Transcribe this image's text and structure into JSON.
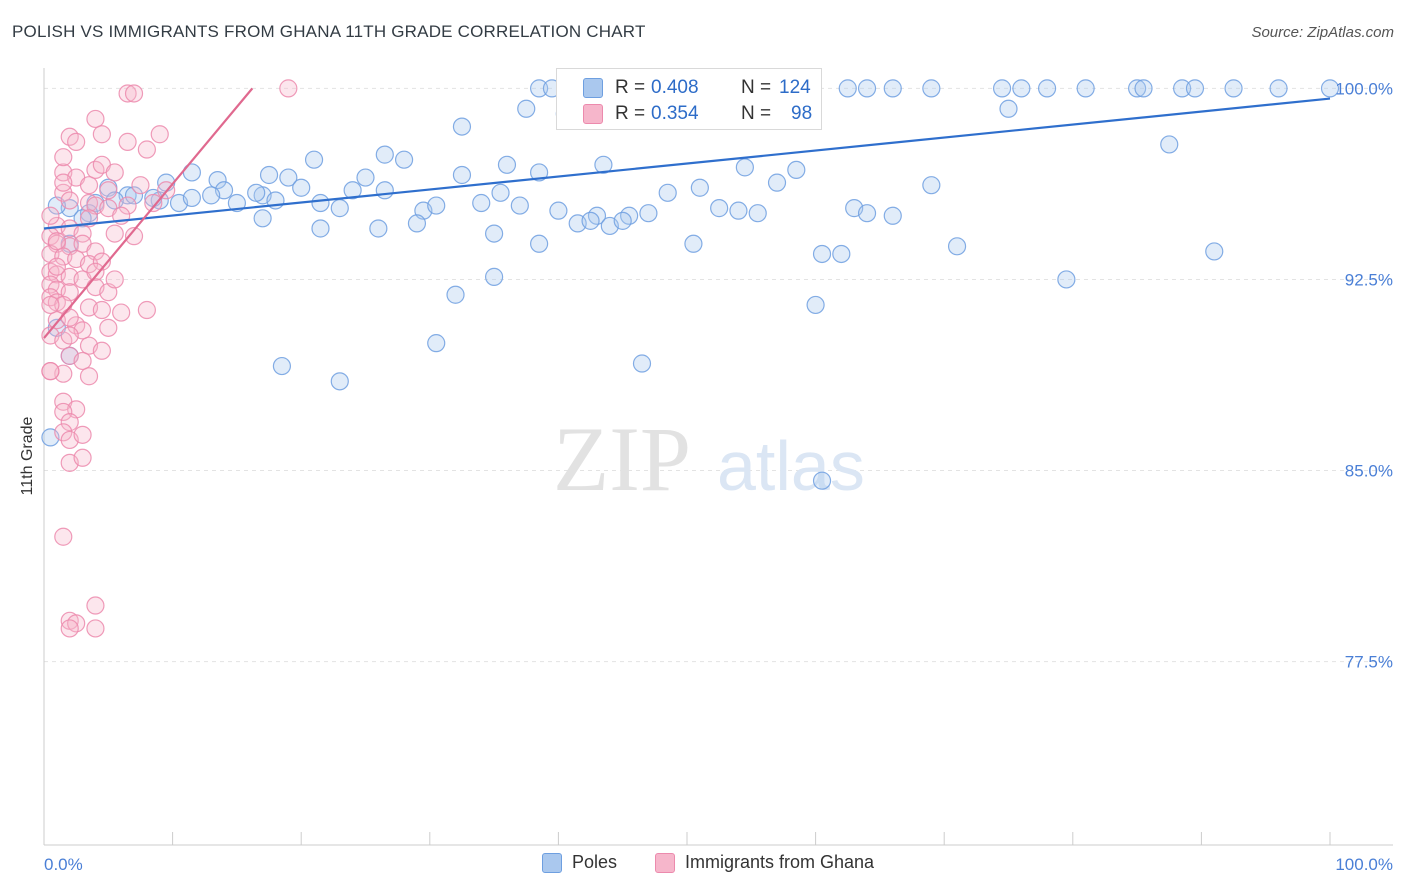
{
  "header": {
    "title": "POLISH VS IMMIGRANTS FROM GHANA 11TH GRADE CORRELATION CHART",
    "source": "Source: ZipAtlas.com"
  },
  "watermark": {
    "left": "ZIP",
    "right": "atlas"
  },
  "colors": {
    "poles_fill": "#aac8ee",
    "poles_stroke": "#6e9fe0",
    "poles_line": "#2f6fcd",
    "ghana_fill": "#f6b6cb",
    "ghana_stroke": "#ec8aad",
    "ghana_line": "#e0698f",
    "grid": "#e3e3e3",
    "tick_text": "#4a7fd6"
  },
  "legend": {
    "poles": {
      "r_label": "R =",
      "r_value": "0.408",
      "n_label": "N =",
      "n_value": "124"
    },
    "ghana": {
      "r_label": "R =",
      "r_value": "0.354",
      "n_label": "N =",
      "n_value": "98"
    }
  },
  "bottom_legend": {
    "poles": "Poles",
    "ghana": "Immigrants from Ghana"
  },
  "chart_data": {
    "type": "scatter",
    "title": "POLISH VS IMMIGRANTS FROM GHANA 11TH GRADE CORRELATION CHART",
    "xlabel": "",
    "ylabel": "11th Grade",
    "xlim": [
      0,
      100
    ],
    "ylim": [
      70.3,
      100.8
    ],
    "x_tick_labels": [
      "0.0%",
      "100.0%"
    ],
    "y_ticks": [
      100.0,
      92.5,
      85.0,
      77.5
    ],
    "y_tick_labels": [
      "100.0%",
      "92.5%",
      "85.0%",
      "77.5%"
    ],
    "grid": true,
    "legend_position": "top-center",
    "series": [
      {
        "name": "Poles",
        "r": 0.408,
        "n": 124,
        "trend": {
          "x": [
            0,
            100
          ],
          "y": [
            94.5,
            99.6
          ]
        },
        "points": [
          [
            38.5,
            100
          ],
          [
            39.5,
            100
          ],
          [
            41,
            100
          ],
          [
            43,
            100
          ],
          [
            47.5,
            100
          ],
          [
            48.5,
            100
          ],
          [
            51.5,
            100
          ],
          [
            54,
            100
          ],
          [
            57.5,
            100
          ],
          [
            62.5,
            100
          ],
          [
            64,
            100
          ],
          [
            66,
            100
          ],
          [
            69,
            100
          ],
          [
            74.5,
            100
          ],
          [
            76,
            100
          ],
          [
            78,
            100
          ],
          [
            81,
            100
          ],
          [
            85,
            100
          ],
          [
            85.5,
            100
          ],
          [
            88.5,
            100
          ],
          [
            89.5,
            100
          ],
          [
            92.5,
            100
          ],
          [
            96,
            100
          ],
          [
            100,
            100
          ],
          [
            37.5,
            99.2
          ],
          [
            47,
            99.3
          ],
          [
            56.5,
            99.3
          ],
          [
            75,
            99.2
          ],
          [
            40.5,
            99
          ],
          [
            50.5,
            99
          ],
          [
            32.5,
            98.5
          ],
          [
            87.5,
            97.8
          ],
          [
            26.5,
            97.4
          ],
          [
            21,
            97.2
          ],
          [
            28,
            97.2
          ],
          [
            36,
            97
          ],
          [
            43.5,
            97
          ],
          [
            54.5,
            96.9
          ],
          [
            58.5,
            96.8
          ],
          [
            38.5,
            96.7
          ],
          [
            11.5,
            96.7
          ],
          [
            17.5,
            96.6
          ],
          [
            19,
            96.5
          ],
          [
            25,
            96.5
          ],
          [
            32.5,
            96.6
          ],
          [
            13.5,
            96.4
          ],
          [
            5,
            96.1
          ],
          [
            9.5,
            96.3
          ],
          [
            14,
            96
          ],
          [
            20,
            96.1
          ],
          [
            24,
            96
          ],
          [
            26.5,
            96
          ],
          [
            48.5,
            95.9
          ],
          [
            51,
            96.1
          ],
          [
            35.5,
            95.9
          ],
          [
            57,
            96.3
          ],
          [
            69,
            96.2
          ],
          [
            6.5,
            95.8
          ],
          [
            9,
            95.6
          ],
          [
            7,
            95.8
          ],
          [
            8.5,
            95.7
          ],
          [
            10.5,
            95.5
          ],
          [
            11.5,
            95.7
          ],
          [
            13,
            95.8
          ],
          [
            15,
            95.5
          ],
          [
            17,
            95.8
          ],
          [
            16.5,
            95.9
          ],
          [
            18,
            95.6
          ],
          [
            21.5,
            95.5
          ],
          [
            23,
            95.3
          ],
          [
            5.5,
            95.6
          ],
          [
            4,
            95.5
          ],
          [
            2,
            95.3
          ],
          [
            1,
            95.4
          ],
          [
            3.5,
            95.1
          ],
          [
            29.5,
            95.2
          ],
          [
            30.5,
            95.4
          ],
          [
            34,
            95.5
          ],
          [
            37,
            95.4
          ],
          [
            40,
            95.2
          ],
          [
            43,
            95
          ],
          [
            45.5,
            95
          ],
          [
            47,
            95.1
          ],
          [
            52.5,
            95.3
          ],
          [
            54,
            95.2
          ],
          [
            63,
            95.3
          ],
          [
            64,
            95.1
          ],
          [
            66,
            95
          ],
          [
            55.5,
            95.1
          ],
          [
            41.5,
            94.7
          ],
          [
            42.5,
            94.8
          ],
          [
            44,
            94.6
          ],
          [
            45,
            94.8
          ],
          [
            17,
            94.9
          ],
          [
            21.5,
            94.5
          ],
          [
            26,
            94.5
          ],
          [
            29,
            94.7
          ],
          [
            35,
            94.3
          ],
          [
            38.5,
            93.9
          ],
          [
            50.5,
            93.9
          ],
          [
            60.5,
            93.5
          ],
          [
            62,
            93.5
          ],
          [
            71,
            93.8
          ],
          [
            91,
            93.6
          ],
          [
            3,
            94.9
          ],
          [
            2,
            93.9
          ],
          [
            79.5,
            92.5
          ],
          [
            35,
            92.6
          ],
          [
            60,
            91.5
          ],
          [
            32,
            91.9
          ],
          [
            30.5,
            90
          ],
          [
            1,
            90.6
          ],
          [
            2,
            89.5
          ],
          [
            46.5,
            89.2
          ],
          [
            18.5,
            89.1
          ],
          [
            23,
            88.5
          ],
          [
            60.5,
            84.6
          ],
          [
            0.5,
            86.3
          ]
        ]
      },
      {
        "name": "Immigrants from Ghana",
        "r": 0.354,
        "n": 98,
        "trend": {
          "x": [
            0,
            16.2
          ],
          "y": [
            90.2,
            100
          ]
        },
        "points": [
          [
            6.5,
            99.8
          ],
          [
            7,
            99.8
          ],
          [
            19,
            100
          ],
          [
            4,
            98.8
          ],
          [
            2,
            98.1
          ],
          [
            4.5,
            98.2
          ],
          [
            9,
            98.2
          ],
          [
            6.5,
            97.9
          ],
          [
            8,
            97.6
          ],
          [
            1.5,
            96.7
          ],
          [
            2.5,
            96.5
          ],
          [
            4,
            96.8
          ],
          [
            4.5,
            97
          ],
          [
            5.5,
            96.7
          ],
          [
            3.5,
            96.2
          ],
          [
            1.5,
            95.9
          ],
          [
            2,
            95.6
          ],
          [
            3.5,
            95.5
          ],
          [
            4,
            95.4
          ],
          [
            5,
            95.3
          ],
          [
            6.5,
            95.4
          ],
          [
            8.5,
            95.5
          ],
          [
            1,
            94.6
          ],
          [
            2,
            94.5
          ],
          [
            3,
            94.3
          ],
          [
            5.5,
            94.3
          ],
          [
            0.5,
            94.2
          ],
          [
            1,
            93.9
          ],
          [
            2,
            93.8
          ],
          [
            3,
            93.9
          ],
          [
            4,
            93.6
          ],
          [
            0.5,
            93.5
          ],
          [
            1.5,
            93.4
          ],
          [
            2.5,
            93.3
          ],
          [
            3.5,
            93.1
          ],
          [
            4.5,
            93.2
          ],
          [
            0.5,
            92.8
          ],
          [
            1,
            92.7
          ],
          [
            2,
            92.6
          ],
          [
            3,
            92.5
          ],
          [
            0.5,
            92.3
          ],
          [
            1,
            92.1
          ],
          [
            2,
            92
          ],
          [
            4,
            92.2
          ],
          [
            5,
            92
          ],
          [
            0.5,
            91.8
          ],
          [
            1,
            91.6
          ],
          [
            1.5,
            91.5
          ],
          [
            3.5,
            91.4
          ],
          [
            4.5,
            91.3
          ],
          [
            6,
            91.2
          ],
          [
            1,
            90.9
          ],
          [
            2.5,
            90.7
          ],
          [
            3,
            90.5
          ],
          [
            5,
            90.6
          ],
          [
            0.5,
            90.3
          ],
          [
            1.5,
            90.1
          ],
          [
            3.5,
            89.9
          ],
          [
            4.5,
            89.7
          ],
          [
            2,
            89.5
          ],
          [
            3,
            89.3
          ],
          [
            1.5,
            88.8
          ],
          [
            3.5,
            88.7
          ],
          [
            0.5,
            88.9
          ],
          [
            1.5,
            87.7
          ],
          [
            2.5,
            87.4
          ],
          [
            1.5,
            87.3
          ],
          [
            2,
            86.9
          ],
          [
            1.5,
            86.5
          ],
          [
            2,
            86.2
          ],
          [
            3,
            86.4
          ],
          [
            2,
            85.3
          ],
          [
            3,
            85.5
          ],
          [
            1.5,
            82.4
          ],
          [
            4,
            79.7
          ],
          [
            2,
            79.1
          ],
          [
            2.5,
            79
          ],
          [
            2,
            78.8
          ],
          [
            4,
            78.8
          ],
          [
            2,
            91
          ],
          [
            8,
            91.3
          ],
          [
            1,
            93
          ],
          [
            0.5,
            88.9
          ],
          [
            5,
            96
          ],
          [
            7.5,
            96.2
          ],
          [
            6,
            95
          ],
          [
            2.5,
            97.9
          ],
          [
            0.5,
            95
          ],
          [
            1.5,
            96.3
          ],
          [
            1,
            94
          ],
          [
            3.5,
            94.9
          ],
          [
            5.5,
            92.5
          ],
          [
            2,
            90.3
          ],
          [
            0.5,
            91.5
          ],
          [
            7,
            94.2
          ],
          [
            9.5,
            96
          ],
          [
            1.5,
            97.3
          ],
          [
            4,
            92.8
          ]
        ]
      }
    ]
  }
}
